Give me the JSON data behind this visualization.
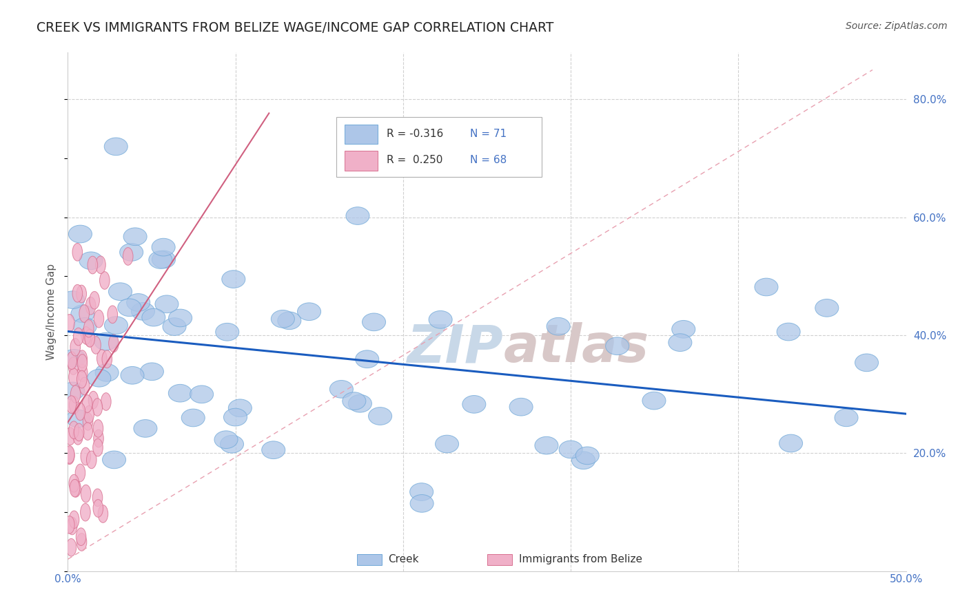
{
  "title": "CREEK VS IMMIGRANTS FROM BELIZE WAGE/INCOME GAP CORRELATION CHART",
  "source": "Source: ZipAtlas.com",
  "ylabel": "Wage/Income Gap",
  "xlim": [
    0.0,
    0.5
  ],
  "ylim": [
    0.0,
    0.88
  ],
  "xticks": [
    0.0,
    0.1,
    0.2,
    0.3,
    0.4,
    0.5
  ],
  "xtick_labels": [
    "0.0%",
    "",
    "",
    "",
    "",
    "50.0%"
  ],
  "yticks_right": [
    0.2,
    0.4,
    0.6,
    0.8
  ],
  "ytick_labels_right": [
    "20.0%",
    "40.0%",
    "60.0%",
    "80.0%"
  ],
  "creek_fill": "#adc6e8",
  "creek_edge": "#6fa8d8",
  "belize_fill": "#f0b0c8",
  "belize_edge": "#d87090",
  "trend_blue": "#1a5cbf",
  "trend_pink_solid": "#d06080",
  "trend_pink_dash": "#e8a0b0",
  "R_creek": -0.316,
  "N_creek": 71,
  "R_belize": 0.25,
  "N_belize": 68,
  "watermark_zip_color": "#c8d8e8",
  "watermark_atlas_color": "#d8c8c8",
  "grid_color": "#d0d0d0",
  "bg_color": "#ffffff",
  "legend_R_color": "#333333",
  "legend_N_color": "#4472c4",
  "source_color": "#555555",
  "title_color": "#222222",
  "axis_label_color": "#555555",
  "tick_color": "#4472c4"
}
